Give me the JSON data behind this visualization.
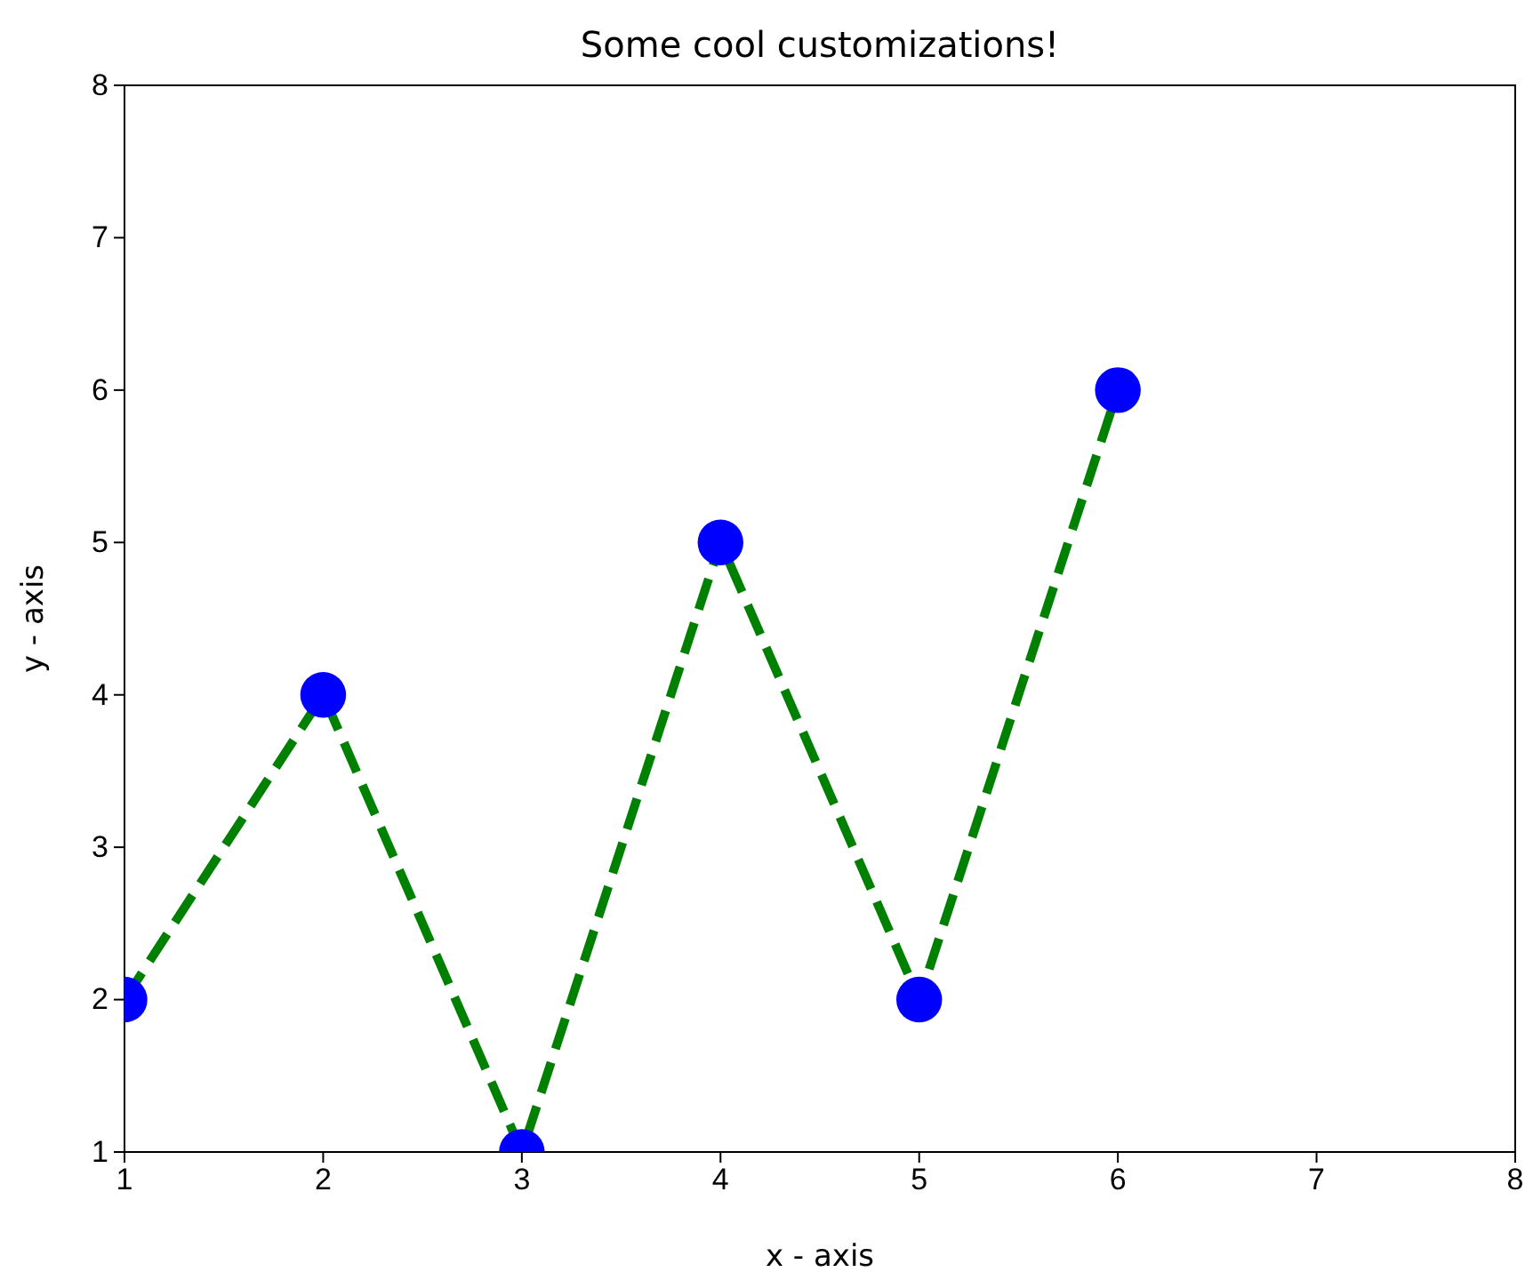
{
  "chart_data": {
    "type": "line",
    "title": "Some cool customizations!",
    "xlabel": "x - axis",
    "ylabel": "y - axis",
    "x": [
      1,
      2,
      3,
      4,
      5,
      6
    ],
    "series": [
      {
        "color": "#008000",
        "colors": [
          "#0000ff",
          "#0000ff",
          "#0000ff",
          "#0000ff",
          "#0000ff",
          "#0000ff"
        ],
        "values": [
          2,
          4,
          1,
          5,
          2,
          6
        ]
      }
    ],
    "xlim": [
      1,
      8
    ],
    "ylim": [
      1,
      8
    ],
    "xticks": [
      1,
      2,
      3,
      4,
      5,
      6,
      7,
      8
    ],
    "yticks": [
      1,
      2,
      3,
      4,
      5,
      6,
      7,
      8
    ],
    "marker": "circle",
    "line_style": "dashed",
    "grid": false
  }
}
